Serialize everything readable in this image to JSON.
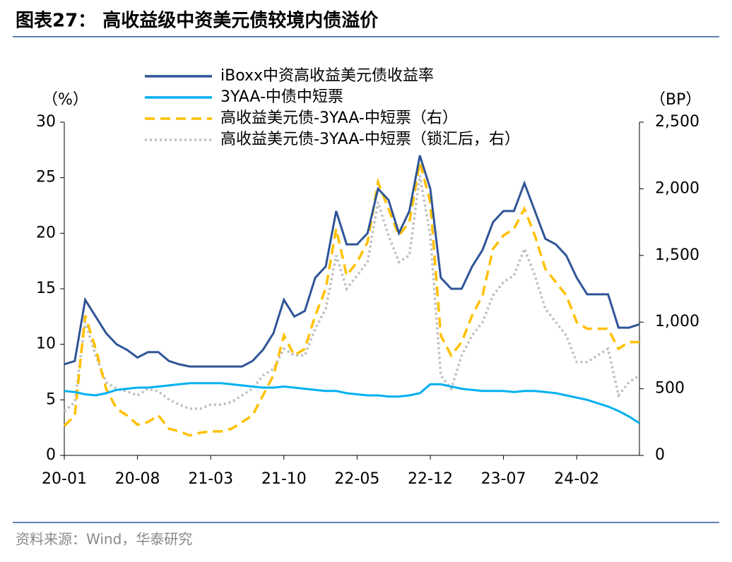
{
  "chart_data": {
    "type": "line",
    "title": "图表27：  高收益级中资美元债较境内债溢价",
    "source": "资料来源：Wind，华泰研究",
    "y_label": "（%）",
    "y2_label": "（BP）",
    "x": [
      "20-01",
      "20-02",
      "20-03",
      "20-04",
      "20-05",
      "20-06",
      "20-07",
      "20-08",
      "20-09",
      "20-10",
      "20-11",
      "20-12",
      "21-01",
      "21-02",
      "21-03",
      "21-04",
      "21-05",
      "21-06",
      "21-07",
      "21-08",
      "21-09",
      "21-10",
      "21-11",
      "21-12",
      "22-01",
      "22-02",
      "22-03",
      "22-04",
      "22-05",
      "22-06",
      "22-07",
      "22-08",
      "22-09",
      "22-10",
      "22-11",
      "22-12",
      "23-01",
      "23-02",
      "23-03",
      "23-04",
      "23-05",
      "23-06",
      "23-07",
      "23-08",
      "23-09",
      "23-10",
      "23-11",
      "23-12",
      "24-01",
      "24-02",
      "24-03",
      "24-04",
      "24-05",
      "24-06",
      "24-07",
      "24-08"
    ],
    "xticks": [
      "20-01",
      "20-08",
      "21-03",
      "21-10",
      "22-05",
      "22-12",
      "23-07",
      "24-02"
    ],
    "ylim": [
      0,
      30
    ],
    "yticks": [
      0,
      5,
      10,
      15,
      20,
      25,
      30
    ],
    "y2lim": [
      0,
      2500
    ],
    "y2ticks": [
      0,
      {
        "value": 500,
        "label": "500"
      },
      {
        "value": 1000,
        "label": "1,000"
      },
      {
        "value": 1500,
        "label": "1,500"
      },
      {
        "value": 2000,
        "label": "2,000"
      },
      {
        "value": 2500,
        "label": "2,500"
      }
    ],
    "series": [
      {
        "name": "iBoxx中资高收益美元债收益率",
        "color": "#2f5597",
        "dash": "solid",
        "values": [
          8.2,
          8.5,
          14,
          12.5,
          11,
          10,
          9.5,
          8.8,
          9.3,
          9.3,
          8.5,
          8.2,
          8.0,
          8.0,
          8.0,
          8.0,
          8.0,
          8.0,
          8.5,
          9.5,
          11,
          14,
          12.5,
          13,
          16,
          17,
          22,
          19,
          19,
          20,
          24,
          23,
          20,
          22,
          27,
          24,
          16,
          15,
          15,
          17,
          18.5,
          21,
          22,
          22,
          24.5,
          22,
          19.5,
          19,
          18,
          16,
          14.5,
          14.5,
          14.5,
          11.5,
          11.5,
          11.8
        ]
      },
      {
        "name": "3YAA-中债中短票",
        "color": "#00b0f0",
        "dash": "solid",
        "values": [
          5.8,
          5.7,
          5.5,
          5.4,
          5.6,
          5.9,
          6.0,
          6.1,
          6.1,
          6.2,
          6.3,
          6.4,
          6.5,
          6.5,
          6.5,
          6.5,
          6.4,
          6.3,
          6.2,
          6.1,
          6.1,
          6.2,
          6.1,
          6.0,
          5.9,
          5.8,
          5.8,
          5.6,
          5.5,
          5.4,
          5.4,
          5.3,
          5.3,
          5.4,
          5.6,
          6.4,
          6.4,
          6.2,
          6.0,
          5.9,
          5.8,
          5.8,
          5.8,
          5.7,
          5.8,
          5.8,
          5.7,
          5.6,
          5.4,
          5.2,
          5.0,
          4.7,
          4.4,
          4.0,
          3.5,
          2.9
        ]
      },
      {
        "name": "高收益美元债-3YAA-中短票（右）",
        "color": "#ffc000",
        "dash": "dashed",
        "axis": "y2",
        "values": [
          220,
          300,
          1050,
          800,
          500,
          350,
          300,
          230,
          250,
          300,
          200,
          180,
          150,
          170,
          180,
          180,
          200,
          250,
          300,
          450,
          600,
          900,
          750,
          800,
          1050,
          1250,
          1700,
          1350,
          1450,
          1600,
          2050,
          1850,
          1650,
          1750,
          2200,
          1900,
          900,
          750,
          850,
          1050,
          1200,
          1550,
          1650,
          1700,
          1850,
          1650,
          1400,
          1300,
          1200,
          1000,
          950,
          950,
          950,
          800,
          850,
          850
        ]
      },
      {
        "name": "高收益美元债-3YAA-中短票（锁汇后，右）",
        "color": "#bfbfbf",
        "dash": "dotted",
        "axis": "y2",
        "values": [
          330,
          400,
          1000,
          750,
          550,
          500,
          480,
          450,
          500,
          480,
          420,
          380,
          350,
          350,
          380,
          380,
          400,
          450,
          500,
          600,
          650,
          800,
          750,
          750,
          950,
          1100,
          1500,
          1250,
          1350,
          1450,
          1900,
          1650,
          1450,
          1500,
          2100,
          1650,
          600,
          500,
          750,
          900,
          1000,
          1200,
          1300,
          1350,
          1550,
          1350,
          1100,
          1000,
          900,
          700,
          700,
          750,
          800,
          450,
          550,
          600
        ]
      }
    ]
  }
}
